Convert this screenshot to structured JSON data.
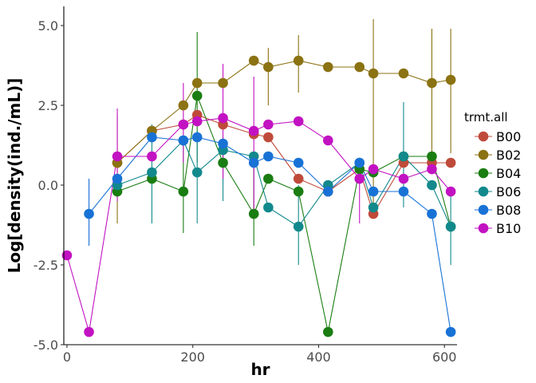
{
  "chart_data": {
    "type": "line",
    "xlabel": "hr",
    "ylabel": "Log[density(ind./mL)]",
    "xlim": [
      -5,
      620
    ],
    "ylim": [
      -5.0,
      5.6
    ],
    "x_ticks": [
      0,
      200,
      400,
      600
    ],
    "x_tick_labels": [
      "0",
      "200",
      "400",
      "600"
    ],
    "y_ticks": [
      -5.0,
      -2.5,
      0.0,
      2.5,
      5.0
    ],
    "y_tick_labels": [
      "-5.0",
      "-2.5",
      "0.0",
      "2.5",
      "5.0"
    ],
    "grid": false,
    "legend_title": "trmt.all",
    "legend_position": "right",
    "series": [
      {
        "name": "B00",
        "color": "#bf4a3a",
        "points": [
          {
            "x": 80,
            "y": 0.7,
            "lo": null,
            "hi": null
          },
          {
            "x": 135,
            "y": 1.7,
            "lo": null,
            "hi": null
          },
          {
            "x": 185,
            "y": 1.9,
            "lo": null,
            "hi": null
          },
          {
            "x": 207,
            "y": 2.2,
            "lo": null,
            "hi": null
          },
          {
            "x": 248,
            "y": 1.9,
            "lo": null,
            "hi": null
          },
          {
            "x": 297,
            "y": 1.6,
            "lo": null,
            "hi": null
          },
          {
            "x": 320,
            "y": 1.5,
            "lo": null,
            "hi": null
          },
          {
            "x": 368,
            "y": 0.2,
            "lo": null,
            "hi": null
          },
          {
            "x": 415,
            "y": -0.2,
            "lo": null,
            "hi": null
          },
          {
            "x": 465,
            "y": 0.5,
            "lo": null,
            "hi": null
          },
          {
            "x": 487,
            "y": -0.9,
            "lo": null,
            "hi": null
          },
          {
            "x": 535,
            "y": 0.7,
            "lo": null,
            "hi": null
          },
          {
            "x": 580,
            "y": 0.7,
            "lo": null,
            "hi": null
          },
          {
            "x": 610,
            "y": 0.7,
            "lo": null,
            "hi": null
          }
        ]
      },
      {
        "name": "B02",
        "color": "#8b7212",
        "points": [
          {
            "x": 80,
            "y": 0.7,
            "lo": -1.2,
            "hi": 2.2
          },
          {
            "x": 135,
            "y": 1.7,
            "lo": null,
            "hi": null
          },
          {
            "x": 185,
            "y": 2.5,
            "lo": null,
            "hi": null
          },
          {
            "x": 207,
            "y": 3.2,
            "lo": null,
            "hi": null
          },
          {
            "x": 248,
            "y": 3.2,
            "lo": null,
            "hi": null
          },
          {
            "x": 297,
            "y": 3.9,
            "lo": null,
            "hi": null
          },
          {
            "x": 320,
            "y": 3.7,
            "lo": 2.5,
            "hi": 4.3
          },
          {
            "x": 368,
            "y": 3.9,
            "lo": 2.9,
            "hi": 4.7
          },
          {
            "x": 415,
            "y": 3.7,
            "lo": null,
            "hi": null
          },
          {
            "x": 465,
            "y": 3.7,
            "lo": null,
            "hi": null
          },
          {
            "x": 487,
            "y": 3.5,
            "lo": -0.9,
            "hi": 5.2
          },
          {
            "x": 535,
            "y": 3.5,
            "lo": null,
            "hi": null
          },
          {
            "x": 580,
            "y": 3.2,
            "lo": 0.5,
            "hi": 4.9
          },
          {
            "x": 610,
            "y": 3.3,
            "lo": 1.0,
            "hi": 4.9
          }
        ]
      },
      {
        "name": "B04",
        "color": "#1a7d12",
        "points": [
          {
            "x": 80,
            "y": -0.2,
            "lo": null,
            "hi": null
          },
          {
            "x": 135,
            "y": 0.2,
            "lo": null,
            "hi": null
          },
          {
            "x": 185,
            "y": -0.2,
            "lo": -1.5,
            "hi": 1.3
          },
          {
            "x": 207,
            "y": 2.8,
            "lo": 0.7,
            "hi": 4.8
          },
          {
            "x": 248,
            "y": 0.7,
            "lo": null,
            "hi": null
          },
          {
            "x": 297,
            "y": -0.9,
            "lo": -1.9,
            "hi": 0.7
          },
          {
            "x": 320,
            "y": 0.2,
            "lo": null,
            "hi": null
          },
          {
            "x": 368,
            "y": -0.2,
            "lo": null,
            "hi": null
          },
          {
            "x": 415,
            "y": -4.6,
            "lo": null,
            "hi": null
          },
          {
            "x": 465,
            "y": 0.5,
            "lo": null,
            "hi": null
          },
          {
            "x": 487,
            "y": 0.4,
            "lo": null,
            "hi": null
          },
          {
            "x": 535,
            "y": 0.9,
            "lo": null,
            "hi": null
          },
          {
            "x": 580,
            "y": 0.9,
            "lo": null,
            "hi": null
          },
          {
            "x": 610,
            "y": -1.3,
            "lo": null,
            "hi": null
          }
        ]
      },
      {
        "name": "B06",
        "color": "#12898c",
        "points": [
          {
            "x": 80,
            "y": 0.0,
            "lo": null,
            "hi": null
          },
          {
            "x": 135,
            "y": 0.4,
            "lo": -1.2,
            "hi": 1.9
          },
          {
            "x": 185,
            "y": 1.4,
            "lo": null,
            "hi": null
          },
          {
            "x": 207,
            "y": 0.4,
            "lo": -1.2,
            "hi": 1.7
          },
          {
            "x": 248,
            "y": 1.1,
            "lo": -0.5,
            "hi": 1.5
          },
          {
            "x": 297,
            "y": 0.9,
            "lo": null,
            "hi": null
          },
          {
            "x": 320,
            "y": -0.7,
            "lo": null,
            "hi": null
          },
          {
            "x": 368,
            "y": -1.3,
            "lo": -2.5,
            "hi": 0.0
          },
          {
            "x": 415,
            "y": 0.0,
            "lo": null,
            "hi": null
          },
          {
            "x": 465,
            "y": 0.7,
            "lo": null,
            "hi": null
          },
          {
            "x": 487,
            "y": -0.7,
            "lo": null,
            "hi": null
          },
          {
            "x": 535,
            "y": 0.9,
            "lo": -0.7,
            "hi": 2.6
          },
          {
            "x": 580,
            "y": 0.0,
            "lo": null,
            "hi": null
          },
          {
            "x": 610,
            "y": -1.3,
            "lo": -2.5,
            "hi": -0.2
          }
        ]
      },
      {
        "name": "B08",
        "color": "#1872d6",
        "points": [
          {
            "x": 35,
            "y": -0.9,
            "lo": -1.9,
            "hi": 0.2
          },
          {
            "x": 80,
            "y": 0.2,
            "lo": null,
            "hi": null
          },
          {
            "x": 135,
            "y": 1.5,
            "lo": null,
            "hi": null
          },
          {
            "x": 185,
            "y": 1.4,
            "lo": null,
            "hi": null
          },
          {
            "x": 207,
            "y": 1.5,
            "lo": null,
            "hi": null
          },
          {
            "x": 248,
            "y": 1.3,
            "lo": null,
            "hi": null
          },
          {
            "x": 297,
            "y": 0.7,
            "lo": null,
            "hi": null
          },
          {
            "x": 320,
            "y": 0.9,
            "lo": null,
            "hi": null
          },
          {
            "x": 368,
            "y": 0.7,
            "lo": null,
            "hi": null
          },
          {
            "x": 415,
            "y": -0.2,
            "lo": null,
            "hi": null
          },
          {
            "x": 465,
            "y": 0.7,
            "lo": null,
            "hi": null
          },
          {
            "x": 487,
            "y": -0.2,
            "lo": null,
            "hi": null
          },
          {
            "x": 535,
            "y": -0.2,
            "lo": null,
            "hi": null
          },
          {
            "x": 580,
            "y": -0.9,
            "lo": null,
            "hi": null
          },
          {
            "x": 610,
            "y": -4.6,
            "lo": null,
            "hi": null
          }
        ]
      },
      {
        "name": "B10",
        "color": "#c212c2",
        "points": [
          {
            "x": 0,
            "y": -2.2,
            "lo": null,
            "hi": null
          },
          {
            "x": 35,
            "y": -4.6,
            "lo": null,
            "hi": null
          },
          {
            "x": 80,
            "y": 0.9,
            "lo": -0.5,
            "hi": 2.4
          },
          {
            "x": 135,
            "y": 0.9,
            "lo": null,
            "hi": null
          },
          {
            "x": 185,
            "y": 1.9,
            "lo": 0.7,
            "hi": 3.2
          },
          {
            "x": 207,
            "y": 2.0,
            "lo": null,
            "hi": null
          },
          {
            "x": 248,
            "y": 2.1,
            "lo": 0.2,
            "hi": 3.8
          },
          {
            "x": 297,
            "y": 1.7,
            "lo": -0.9,
            "hi": 3.4
          },
          {
            "x": 320,
            "y": 1.9,
            "lo": null,
            "hi": null
          },
          {
            "x": 368,
            "y": 2.0,
            "lo": null,
            "hi": null
          },
          {
            "x": 415,
            "y": 1.4,
            "lo": null,
            "hi": null
          },
          {
            "x": 465,
            "y": 0.2,
            "lo": -1.2,
            "hi": 0.7
          },
          {
            "x": 487,
            "y": 0.5,
            "lo": null,
            "hi": null
          },
          {
            "x": 535,
            "y": 0.2,
            "lo": null,
            "hi": null
          },
          {
            "x": 580,
            "y": 0.5,
            "lo": null,
            "hi": null
          },
          {
            "x": 610,
            "y": -0.2,
            "lo": null,
            "hi": null
          }
        ]
      }
    ]
  }
}
